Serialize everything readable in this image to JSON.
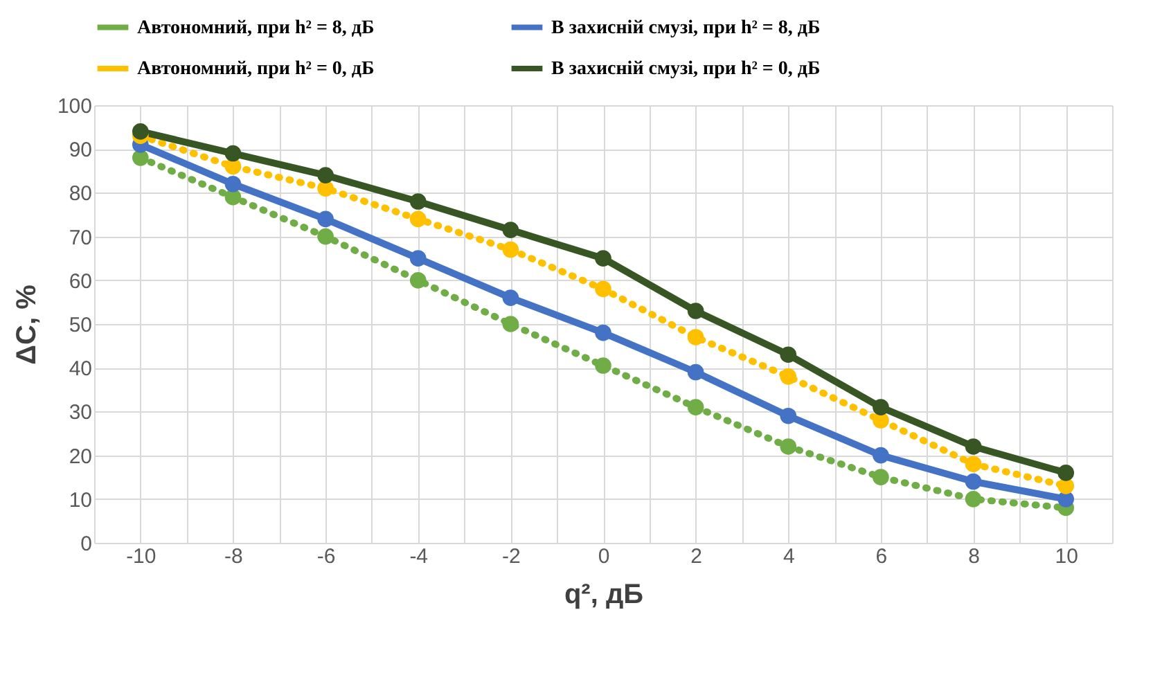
{
  "chart_data": {
    "type": "line",
    "xlabel": "q², дБ",
    "ylabel": "ΔC, %",
    "x": [
      -10,
      -8,
      -6,
      -4,
      -2,
      0,
      2,
      4,
      6,
      8,
      10
    ],
    "series": [
      {
        "name": "Автономний, при h² = 8, дБ",
        "color": "#70ad47",
        "line_style": "dotted",
        "values": [
          88,
          79,
          70,
          60,
          50,
          40.5,
          31,
          22,
          15,
          10,
          8
        ]
      },
      {
        "name": "В захисній смузі, при h² = 8, дБ",
        "color": "#4472c4",
        "line_style": "solid",
        "values": [
          91,
          82,
          74,
          65,
          56,
          48,
          39,
          29,
          20,
          14,
          10
        ]
      },
      {
        "name": "Автономний, при h² = 0, дБ",
        "color": "#ffc000",
        "line_style": "dotted",
        "values": [
          93,
          86,
          81,
          74,
          67,
          58,
          47,
          38,
          28,
          18,
          13
        ]
      },
      {
        "name": "В захисній смузі, при h² = 0, дБ",
        "color": "#375623",
        "line_style": "solid",
        "values": [
          94,
          89,
          84,
          78,
          71.5,
          65,
          53,
          43,
          31,
          22,
          16
        ]
      }
    ],
    "xlim": [
      -11,
      11
    ],
    "xticks": [
      {
        "value": -11,
        "label": null
      },
      -10,
      {
        "value": -9,
        "label": null
      },
      -8,
      {
        "value": -7,
        "label": null
      },
      -6,
      {
        "value": -5,
        "label": null
      },
      -4,
      {
        "value": -3,
        "label": null
      },
      -2,
      {
        "value": -1,
        "label": null
      },
      0,
      {
        "value": 1,
        "label": null
      },
      2,
      {
        "value": 3,
        "label": null
      },
      4,
      {
        "value": 5,
        "label": null
      },
      6,
      {
        "value": 7,
        "label": null
      },
      8,
      {
        "value": 9,
        "label": null
      },
      10,
      {
        "value": 11,
        "label": null
      }
    ],
    "ylim": [
      0,
      100
    ],
    "yticks": [
      0,
      10,
      20,
      30,
      40,
      50,
      60,
      70,
      80,
      90,
      100
    ],
    "grid": true,
    "legend": "top",
    "marker": "circle"
  }
}
